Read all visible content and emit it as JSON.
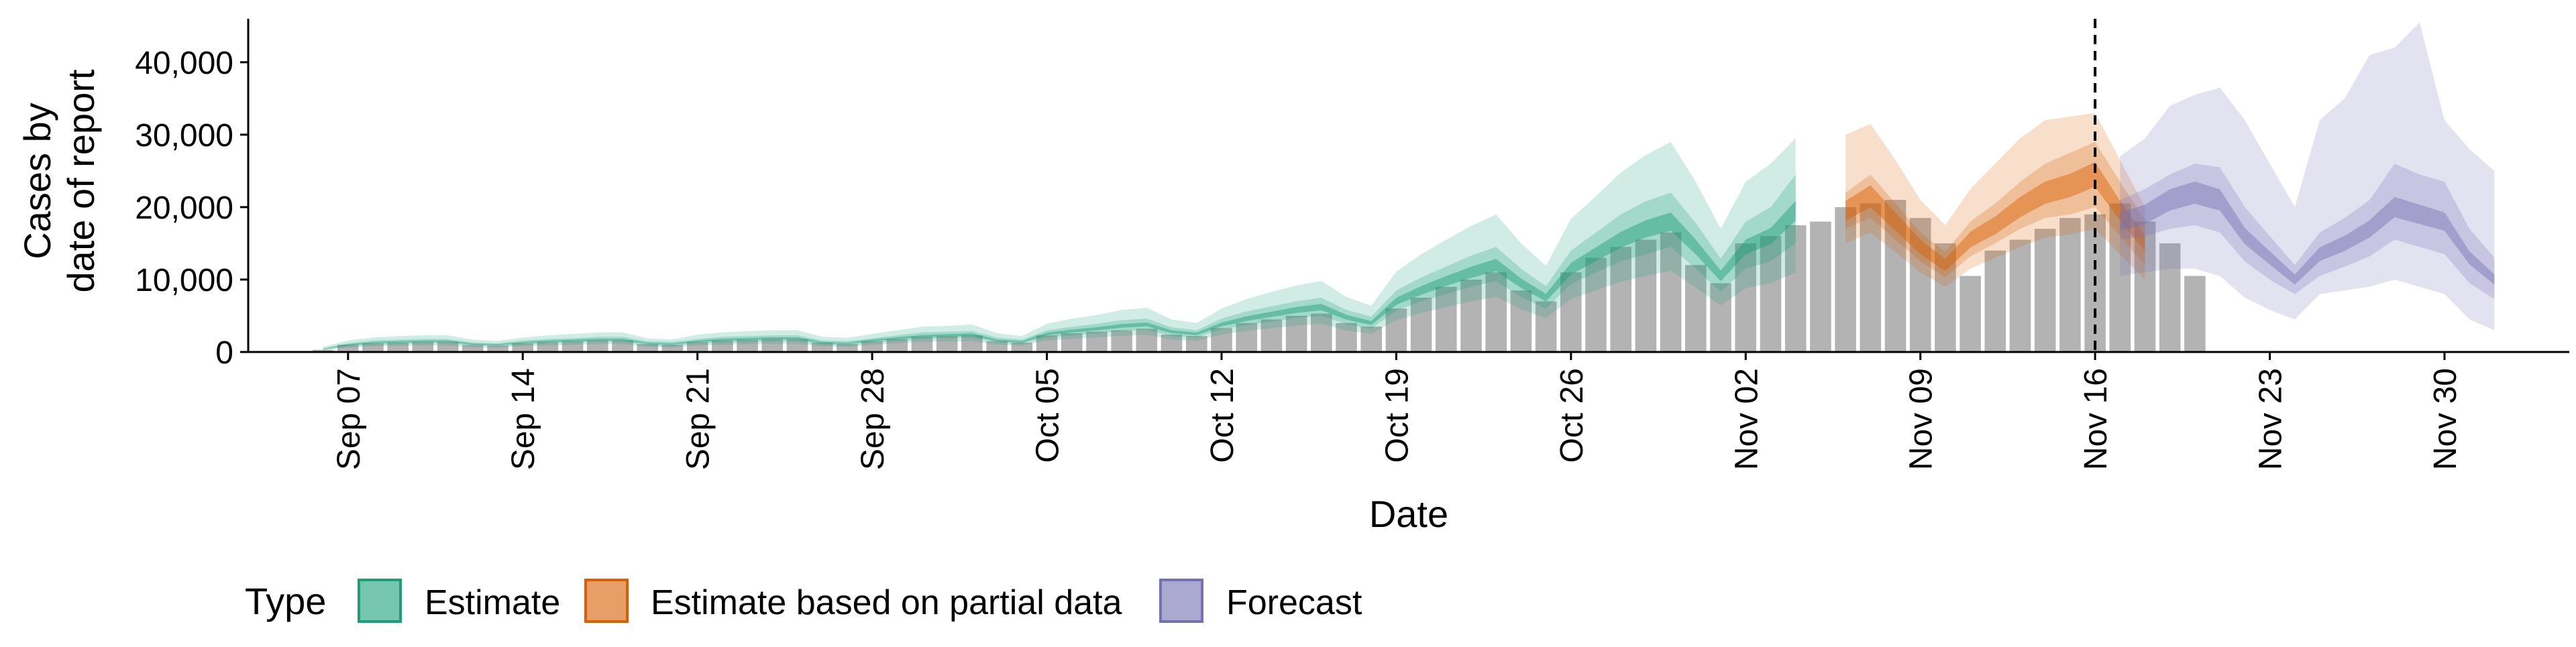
{
  "chart_data": {
    "type": "bar",
    "xlabel": "Date",
    "ylabel_line1": "Cases by",
    "ylabel_line2": "date of report",
    "ylim": [
      0,
      46000
    ],
    "y_ticks": [
      0,
      10000,
      20000,
      30000,
      40000
    ],
    "y_tick_labels": [
      "0",
      "10,000",
      "20,000",
      "30,000",
      "40,000"
    ],
    "x_range": [
      "2020-09-03",
      "2020-12-05"
    ],
    "x_ticks": [
      "2020-09-07",
      "2020-09-14",
      "2020-09-21",
      "2020-09-28",
      "2020-10-05",
      "2020-10-12",
      "2020-10-19",
      "2020-10-26",
      "2020-11-02",
      "2020-11-09",
      "2020-11-16",
      "2020-11-23",
      "2020-11-30"
    ],
    "x_tick_labels": [
      "Sep 07",
      "Sep 14",
      "Sep 21",
      "Sep 28",
      "Oct 05",
      "Oct 12",
      "Oct 19",
      "Oct 26",
      "Nov 02",
      "Nov 09",
      "Nov 16",
      "Nov 23",
      "Nov 30"
    ],
    "vline_date": "2020-11-16",
    "grid": false,
    "legend": {
      "title": "Type",
      "position": "bottom",
      "items": [
        {
          "label": "Estimate",
          "color": "#1b9e77"
        },
        {
          "label": "Estimate based on partial data",
          "color": "#d95f02"
        },
        {
          "label": "Forecast",
          "color": "#7570b3"
        }
      ]
    },
    "bar_color": "#b3b3b3",
    "reported_cases": {
      "start_date": "2020-09-06",
      "values": [
        300,
        1000,
        1200,
        1300,
        1400,
        1400,
        1000,
        900,
        1200,
        1400,
        1500,
        1600,
        1600,
        1100,
        1000,
        1400,
        1600,
        1700,
        1800,
        1800,
        1300,
        1100,
        1500,
        1800,
        2100,
        2200,
        2300,
        1500,
        1300,
        2300,
        2600,
        2800,
        3000,
        3200,
        2400,
        2200,
        3300,
        4000,
        4500,
        5000,
        5300,
        4000,
        3500,
        6000,
        7500,
        9000,
        10000,
        11000,
        8500,
        7000,
        11000,
        13000,
        14500,
        15500,
        16500,
        12000,
        9500,
        15000,
        16000,
        17500,
        18000,
        20000,
        20500,
        21000,
        18500,
        15000,
        10500,
        14000,
        15500,
        17000,
        18500,
        19000,
        20500,
        18000,
        15000,
        10500
      ]
    },
    "series": [
      {
        "name": "Estimate",
        "color": "#1b9e77",
        "start_date": "2020-09-06",
        "median": [
          400,
          1000,
          1300,
          1400,
          1500,
          1500,
          1100,
          1000,
          1300,
          1500,
          1600,
          1700,
          1700,
          1200,
          1100,
          1500,
          1700,
          1800,
          1900,
          1900,
          1300,
          1200,
          1600,
          1900,
          2200,
          2300,
          2400,
          1600,
          1400,
          2500,
          2900,
          3200,
          3600,
          3800,
          2800,
          2500,
          3800,
          4600,
          5200,
          5800,
          6200,
          4800,
          4000,
          7000,
          8500,
          9800,
          11000,
          12000,
          9500,
          7500,
          11500,
          13500,
          15500,
          17000,
          18000,
          14500,
          10500,
          14500,
          16000,
          19500
        ],
        "inner_lo": [
          300,
          800,
          1000,
          1100,
          1200,
          1200,
          900,
          800,
          1000,
          1200,
          1300,
          1400,
          1400,
          900,
          800,
          1200,
          1300,
          1400,
          1500,
          1500,
          1000,
          900,
          1300,
          1500,
          1800,
          1900,
          2000,
          1300,
          1100,
          2000,
          2300,
          2600,
          2900,
          3100,
          2200,
          2000,
          3100,
          3700,
          4200,
          4700,
          5000,
          3800,
          3200,
          5700,
          7000,
          8000,
          9000,
          9800,
          7600,
          6000,
          9400,
          11000,
          12500,
          13500,
          14500,
          11500,
          8300,
          11500,
          12500,
          15000
        ],
        "inner_hi": [
          500,
          1200,
          1600,
          1700,
          1800,
          1800,
          1300,
          1200,
          1600,
          1800,
          1900,
          2100,
          2100,
          1500,
          1400,
          1800,
          2100,
          2200,
          2300,
          2300,
          1600,
          1500,
          1900,
          2300,
          2700,
          2800,
          2900,
          2000,
          1700,
          3000,
          3500,
          3900,
          4400,
          4600,
          3400,
          3000,
          4600,
          5600,
          6300,
          7000,
          7500,
          5800,
          4900,
          8500,
          10300,
          11800,
          13300,
          14500,
          11500,
          9100,
          14000,
          16500,
          19000,
          20800,
          22000,
          17800,
          12900,
          18000,
          20000,
          24500
        ],
        "outer_lo": [
          200,
          600,
          800,
          850,
          900,
          900,
          650,
          600,
          800,
          900,
          1000,
          1100,
          1100,
          700,
          650,
          900,
          1000,
          1100,
          1150,
          1150,
          800,
          700,
          1000,
          1200,
          1400,
          1450,
          1500,
          1000,
          850,
          1600,
          1800,
          2000,
          2250,
          2400,
          1700,
          1550,
          2400,
          2900,
          3300,
          3650,
          3900,
          2950,
          2500,
          4400,
          5400,
          6200,
          7000,
          7600,
          5900,
          4650,
          7300,
          8500,
          9700,
          10500,
          11200,
          8900,
          6400,
          8800,
          9500,
          11000
        ],
        "outer_hi": [
          700,
          1600,
          2000,
          2200,
          2300,
          2300,
          1700,
          1550,
          2000,
          2300,
          2500,
          2700,
          2700,
          1900,
          1750,
          2400,
          2700,
          2900,
          3000,
          3000,
          2100,
          1950,
          2500,
          3000,
          3500,
          3600,
          3800,
          2600,
          2200,
          3900,
          4600,
          5100,
          5800,
          6100,
          4500,
          4000,
          6000,
          7300,
          8300,
          9200,
          9800,
          7600,
          6400,
          11100,
          13500,
          15500,
          17400,
          19000,
          15000,
          11900,
          18400,
          21500,
          24800,
          27200,
          29000,
          23500,
          17000,
          23500,
          26000,
          29500
        ]
      },
      {
        "name": "Estimate based on partial data",
        "color": "#d95f02",
        "start_date": "2020-11-06",
        "median": [
          19500,
          21500,
          18000,
          14500,
          12000,
          15500,
          17500,
          20000,
          22000,
          23000,
          24500,
          19500,
          15000
        ],
        "inner_lo": [
          17000,
          18500,
          15500,
          12500,
          10300,
          13200,
          15000,
          17000,
          18500,
          19000,
          20000,
          16000,
          12000
        ],
        "inner_hi": [
          22000,
          24500,
          20500,
          16500,
          13800,
          18000,
          20500,
          23500,
          26000,
          27500,
          29000,
          23500,
          18200
        ],
        "outer_lo": [
          15000,
          16500,
          13800,
          11000,
          9000,
          11500,
          13000,
          14500,
          15800,
          16200,
          17000,
          13500,
          10000
        ],
        "outer_hi": [
          30000,
          31500,
          26500,
          21000,
          17500,
          22500,
          26000,
          29500,
          32000,
          32500,
          33000,
          26500,
          20000
        ]
      },
      {
        "name": "Forecast",
        "color": "#7570b3",
        "start_date": "2020-11-17",
        "median": [
          18000,
          19000,
          21000,
          22000,
          21000,
          16000,
          13000,
          10000,
          13500,
          15000,
          17000,
          20000,
          19000,
          18000,
          13000,
          10000
        ],
        "inner_lo": [
          15500,
          16000,
          17000,
          17500,
          16500,
          12500,
          10000,
          8000,
          10500,
          11800,
          13200,
          15500,
          14500,
          13500,
          9500,
          7300
        ],
        "inner_hi": [
          21000,
          22500,
          24500,
          26000,
          25500,
          20000,
          16000,
          12000,
          16500,
          18500,
          21000,
          26000,
          24500,
          23500,
          17000,
          13000
        ],
        "outer_lo": [
          10500,
          11000,
          11500,
          11500,
          10500,
          7500,
          5800,
          4500,
          8000,
          8500,
          9000,
          10000,
          9000,
          8000,
          4500,
          3000
        ],
        "outer_hi": [
          27000,
          29500,
          34000,
          35500,
          36500,
          32000,
          26000,
          20000,
          32000,
          35000,
          41000,
          42000,
          45500,
          32000,
          28000,
          25000
        ]
      }
    ]
  }
}
